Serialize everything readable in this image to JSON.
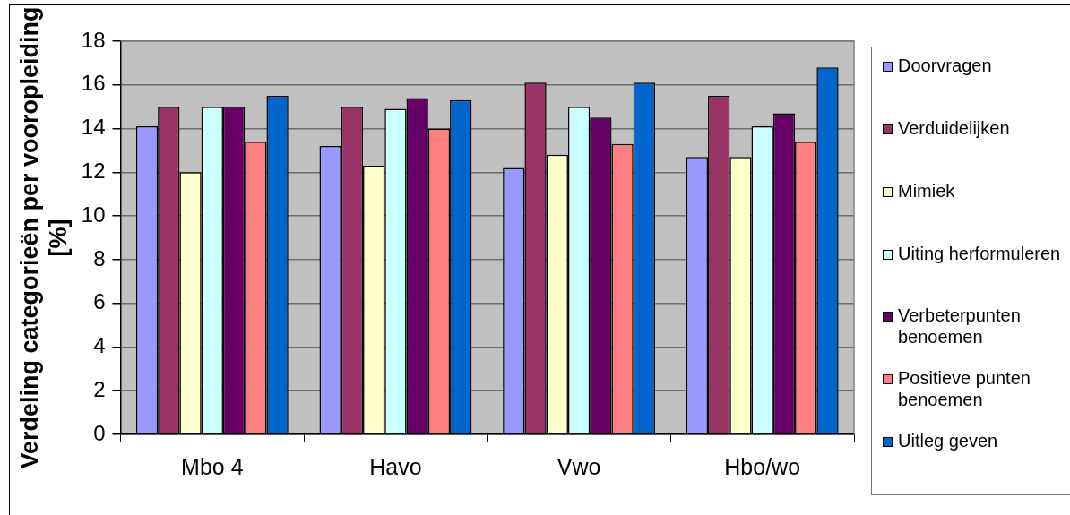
{
  "chart_data": {
    "type": "bar",
    "ylabel": "Verdeling categorieën per vooropleiding [%]",
    "categories": [
      "Mbo 4",
      "Havo",
      "Vwo",
      "Hbo/wo"
    ],
    "series": [
      {
        "name": "Doorvragen",
        "color": "#9999ff",
        "values": [
          14.1,
          13.2,
          12.2,
          12.7
        ]
      },
      {
        "name": "Verduidelijken",
        "color": "#993366",
        "values": [
          15.0,
          15.0,
          16.1,
          15.5
        ]
      },
      {
        "name": "Mimiek",
        "color": "#ffffcc",
        "values": [
          12.0,
          12.3,
          12.8,
          12.7
        ]
      },
      {
        "name": "Uiting herformuleren",
        "color": "#ccffff",
        "values": [
          15.0,
          14.9,
          15.0,
          14.1
        ]
      },
      {
        "name": "Verbeterpunten benoemen",
        "color": "#660066",
        "values": [
          15.0,
          15.4,
          14.5,
          14.7
        ]
      },
      {
        "name": "Positieve punten benoemen",
        "color": "#ff8080",
        "values": [
          13.4,
          14.0,
          13.3,
          13.4
        ]
      },
      {
        "name": "Uitleg geven",
        "color": "#0066cc",
        "values": [
          15.5,
          15.3,
          16.1,
          16.8
        ]
      }
    ],
    "ylim": [
      0,
      18
    ],
    "yticks": [
      0,
      2,
      4,
      6,
      8,
      10,
      12,
      14,
      16,
      18
    ],
    "grid": "y",
    "legend": "right"
  }
}
